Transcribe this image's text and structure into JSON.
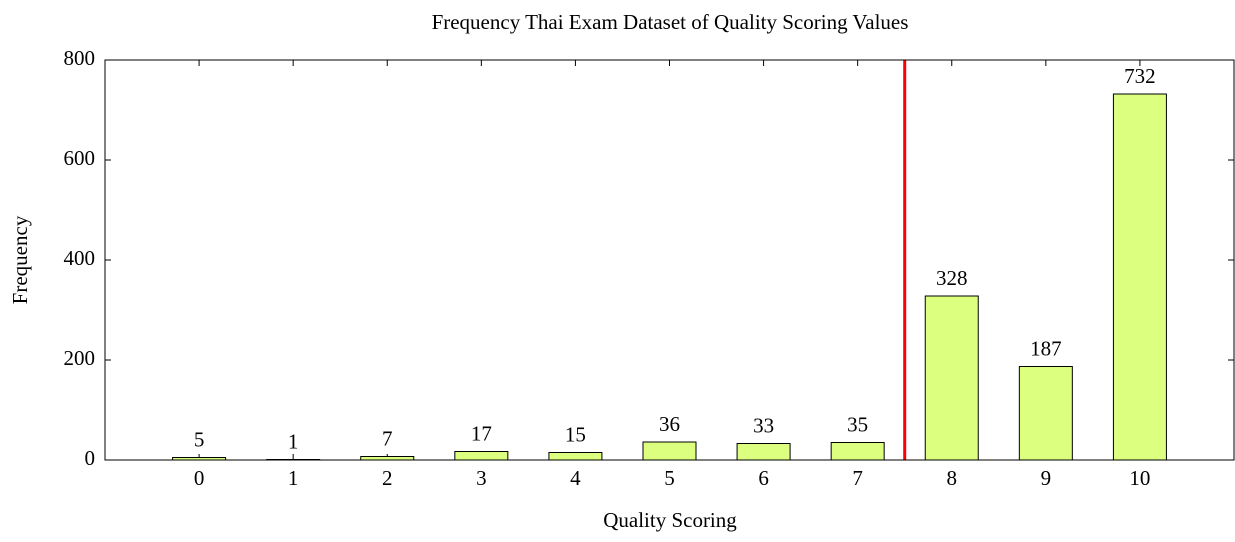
{
  "chart_data": {
    "type": "bar",
    "title": "Frequency Thai Exam Dataset of Quality Scoring Values",
    "x_label": "Quality Scoring",
    "y_label": "Frequency",
    "categories": [
      "0",
      "1",
      "2",
      "3",
      "4",
      "5",
      "6",
      "7",
      "8",
      "9",
      "10"
    ],
    "values": [
      5,
      1,
      7,
      17,
      15,
      36,
      33,
      35,
      328,
      187,
      732
    ],
    "color": "#dcff80",
    "ylim": [
      0,
      800
    ],
    "yticks": [
      0,
      200,
      400,
      600,
      800
    ],
    "reference_line": {
      "x": 7.5,
      "color": "#ff0000"
    }
  }
}
